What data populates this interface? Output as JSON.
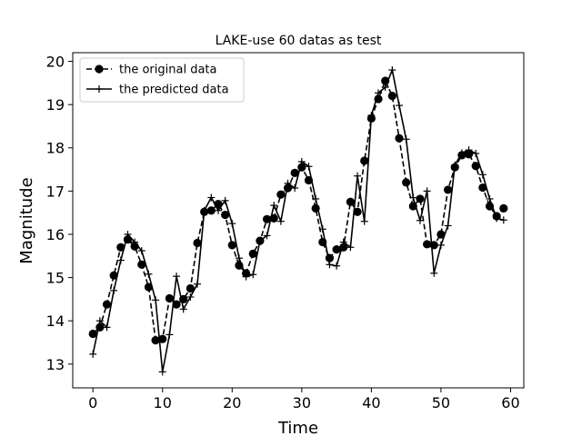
{
  "chart_data": {
    "type": "line",
    "title": "LAKE-use 60 datas as test",
    "xlabel": "Time",
    "ylabel": "Magnitude",
    "xlim": [
      -2.9,
      61.9
    ],
    "ylim": [
      12.45,
      20.2
    ],
    "xticks": [
      "0",
      "10",
      "20",
      "30",
      "40",
      "50",
      "60"
    ],
    "yticks": [
      "13",
      "14",
      "15",
      "16",
      "17",
      "18",
      "19",
      "20"
    ],
    "grid": false,
    "legend_position": "top-left",
    "x": [
      0,
      1,
      2,
      3,
      4,
      5,
      6,
      7,
      8,
      9,
      10,
      11,
      12,
      13,
      14,
      15,
      16,
      17,
      18,
      19,
      20,
      21,
      22,
      23,
      24,
      25,
      26,
      27,
      28,
      29,
      30,
      31,
      32,
      33,
      34,
      35,
      36,
      37,
      38,
      39,
      40,
      41,
      42,
      43,
      44,
      45,
      46,
      47,
      48,
      49,
      50,
      51,
      52,
      53,
      54,
      55,
      56,
      57,
      58,
      59
    ],
    "series": [
      {
        "name": "the original data",
        "style": "dashed-circle",
        "color": "#000000",
        "values": [
          13.7,
          13.85,
          14.38,
          15.05,
          15.7,
          15.88,
          15.72,
          15.3,
          14.78,
          13.55,
          13.58,
          14.52,
          14.38,
          14.5,
          14.75,
          15.8,
          16.52,
          16.55,
          16.7,
          16.45,
          15.75,
          15.28,
          15.1,
          15.55,
          15.85,
          16.35,
          16.37,
          16.92,
          17.07,
          17.42,
          17.55,
          17.25,
          16.6,
          15.82,
          15.45,
          15.65,
          15.7,
          16.75,
          16.52,
          17.7,
          18.68,
          19.13,
          19.55,
          19.2,
          18.22,
          17.2,
          16.65,
          16.82,
          15.77,
          15.75,
          16.0,
          17.03,
          17.55,
          17.83,
          17.85,
          17.58,
          17.08,
          16.65,
          16.42,
          16.6
        ]
      },
      {
        "name": "the predicted data",
        "style": "solid-plus",
        "color": "#000000",
        "values": [
          13.23,
          14.0,
          13.85,
          14.7,
          15.4,
          16.0,
          15.82,
          15.62,
          15.08,
          14.48,
          12.82,
          13.68,
          15.03,
          14.27,
          14.55,
          14.85,
          16.55,
          16.85,
          16.55,
          16.78,
          16.25,
          15.45,
          15.02,
          15.07,
          15.85,
          15.97,
          16.67,
          16.3,
          17.18,
          17.07,
          17.68,
          17.57,
          16.82,
          16.12,
          15.3,
          15.27,
          15.82,
          15.7,
          17.35,
          16.3,
          18.75,
          19.27,
          19.4,
          19.8,
          18.98,
          18.2,
          16.85,
          16.32,
          17.0,
          15.1,
          15.75,
          16.2,
          17.6,
          17.88,
          17.95,
          17.87,
          17.38,
          16.82,
          16.37,
          16.33
        ]
      }
    ]
  }
}
